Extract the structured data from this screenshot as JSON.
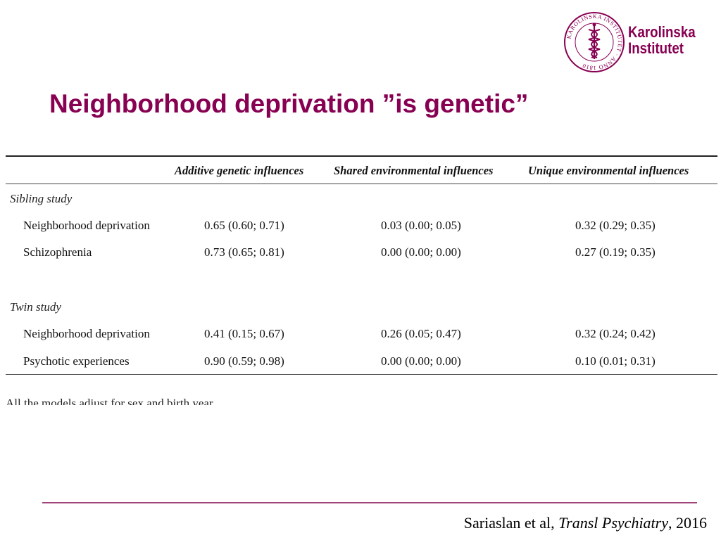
{
  "logo": {
    "line1": "Karolinska",
    "line2": "Institutet",
    "seal_text": "KAROLINSKA INSTITUTET · ANNO 1810",
    "color": "#870052"
  },
  "title": "Neighborhood deprivation ”is genetic”",
  "table": {
    "headers": [
      "Additive genetic influences",
      "Shared environmental influences",
      "Unique environmental influences"
    ],
    "groups": [
      {
        "label": "Sibling study",
        "rows": [
          {
            "name": "Neighborhood deprivation",
            "values": [
              "0.65 (0.60; 0.71)",
              "0.03 (0.00; 0.05)",
              "0.32 (0.29; 0.35)"
            ]
          },
          {
            "name": "Schizophrenia",
            "values": [
              "0.73 (0.65; 0.81)",
              "0.00 (0.00; 0.00)",
              "0.27 (0.19; 0.35)"
            ]
          }
        ]
      },
      {
        "label": "Twin study",
        "rows": [
          {
            "name": "Neighborhood deprivation",
            "values": [
              "0.41 (0.15; 0.67)",
              "0.26 (0.05; 0.47)",
              "0.32 (0.24; 0.42)"
            ]
          },
          {
            "name": "Psychotic experiences",
            "values": [
              "0.90 (0.59; 0.98)",
              "0.00 (0.00; 0.00)",
              "0.10 (0.01; 0.31)"
            ]
          }
        ]
      }
    ],
    "cut_off_note": "All the models adjust for sex and birth year"
  },
  "citation": {
    "authors": "Sariaslan et al, ",
    "journal": "Transl Psychiatry",
    "year": ", 2016"
  }
}
